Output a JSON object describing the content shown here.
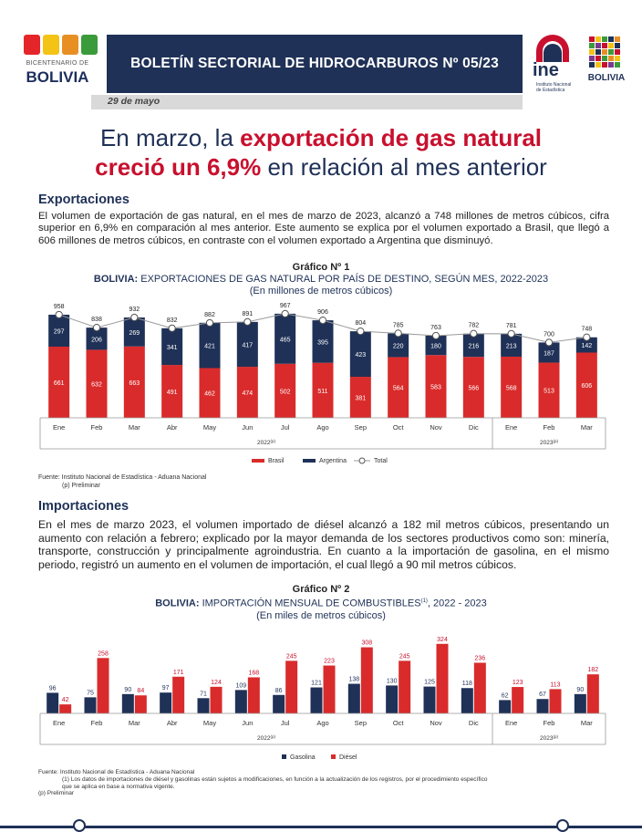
{
  "header": {
    "bicentenario_label": "BICENTENARIO DE",
    "bolivia_label": "BOLIVIA",
    "bulletin_title": "BOLETÍN SECTORIAL DE HIDROCARBUROS Nº 05/23",
    "date": "29 de mayo",
    "ine_logo_text": "ine",
    "ine_logo_subtext": "Instituto Nacional de Estadística",
    "estado_bolivia_label": "BOLIVIA",
    "brand_colors": {
      "navy": "#1f3157",
      "red": "#c8102e"
    }
  },
  "headline": {
    "part1": "En marzo, la ",
    "highlight1": "exportación de gas natural",
    "highlight2": "creció un 6,9%",
    "part2": " en relación al mes anterior"
  },
  "exports": {
    "title": "Exportaciones",
    "paragraph": "El volumen de exportación de gas natural, en el mes de marzo de 2023, alcanzó a 748 millones de metros cúbicos, cifra superior en 6,9% en comparación al mes anterior. Este aumento se explica por el volumen exportado a Brasil, que llegó a 606 millones de metros cúbicos, en contraste con el volumen exportado a Argentina que disminuyó."
  },
  "chart1_header": {
    "number": "Gráfico Nº 1",
    "title_bold": "BOLIVIA:",
    "title_rest": " EXPORTACIONES DE GAS NATURAL POR PAÍS DE DESTINO, SEGÚN MES, 2022-2023",
    "subtitle": "(En millones de metros cúbicos)",
    "source": "Fuente: Instituto Nacional de Estadística - Aduana Nacional",
    "note": "(p) Preliminar"
  },
  "imports": {
    "title": "Importaciones",
    "paragraph": "En el mes de marzo 2023, el volumen importado de diésel alcanzó a 182 mil metros cúbicos, presentando un aumento con relación a febrero; explicado por la mayor demanda de los sectores productivos como son: minería, transporte, construcción y principalmente agroindustria. En cuanto a la importación de gasolina, en el mismo periodo, registró un aumento en el volumen de importación, el cual llegó a 90 mil metros cúbicos."
  },
  "chart2_header": {
    "number": "Gráfico Nº 2",
    "title_bold": "BOLIVIA:",
    "title_rest": " IMPORTACIÓN MENSUAL DE COMBUSTIBLES",
    "title_sup": "(1)",
    "title_end": ", 2022 - 2023",
    "subtitle": "(En miles de metros cúbicos)",
    "source": "Fuente: Instituto Nacional de Estadística - Aduana Nacional",
    "note1": "(1) Los datos de importaciones de diésel y gasolinas están sujetos a modificaciones, en función a la actualización de los registros, por el procedimiento específico",
    "note1b": "que se aplica en base a normativa vigente.",
    "note2": "(p) Preliminar"
  },
  "chart_data": [
    {
      "type": "bar",
      "stacked": true,
      "categories": [
        "Ene",
        "Feb",
        "Mar",
        "Abr",
        "May",
        "Jun",
        "Jul",
        "Ago",
        "Sep",
        "Oct",
        "Nov",
        "Dic",
        "Ene",
        "Feb",
        "Mar"
      ],
      "groups": [
        {
          "label": "2022",
          "sup": "(p)",
          "count": 12
        },
        {
          "label": "2023",
          "sup": "(p)",
          "count": 3
        }
      ],
      "series": [
        {
          "name": "Brasil",
          "color": "#d92b2b",
          "values": [
            661,
            632,
            663,
            491,
            462,
            474,
            502,
            511,
            381,
            564,
            583,
            566,
            568,
            513,
            606
          ]
        },
        {
          "name": "Argentina",
          "color": "#1f3157",
          "values": [
            297,
            206,
            269,
            341,
            421,
            417,
            465,
            395,
            423,
            220,
            180,
            216,
            213,
            187,
            142
          ]
        }
      ],
      "total": {
        "name": "Total",
        "values": [
          958,
          838,
          932,
          832,
          882,
          891,
          967,
          906,
          804,
          785,
          763,
          782,
          781,
          700,
          748
        ]
      },
      "ylim": [
        0,
        1000
      ],
      "legend_position": "bottom-center",
      "grid": false
    },
    {
      "type": "bar",
      "stacked": false,
      "categories": [
        "Ene",
        "Feb",
        "Mar",
        "Abr",
        "May",
        "Jun",
        "Jul",
        "Ago",
        "Sep",
        "Oct",
        "Nov",
        "Dic",
        "Ene",
        "Feb",
        "Mar"
      ],
      "groups": [
        {
          "label": "2022",
          "sup": "(p)",
          "count": 12
        },
        {
          "label": "2023",
          "sup": "(p)",
          "count": 3
        }
      ],
      "series": [
        {
          "name": "Gasolina",
          "color": "#1f3157",
          "values": [
            96,
            75,
            90,
            97,
            71,
            109,
            86,
            121,
            138,
            130,
            125,
            118,
            62,
            67,
            90
          ]
        },
        {
          "name": "Diésel",
          "color": "#d92b2b",
          "values": [
            42,
            258,
            84,
            171,
            124,
            168,
            245,
            223,
            308,
            245,
            324,
            236,
            123,
            113,
            182
          ]
        }
      ],
      "ylim": [
        0,
        340
      ],
      "legend_position": "bottom-center",
      "grid": false
    }
  ]
}
